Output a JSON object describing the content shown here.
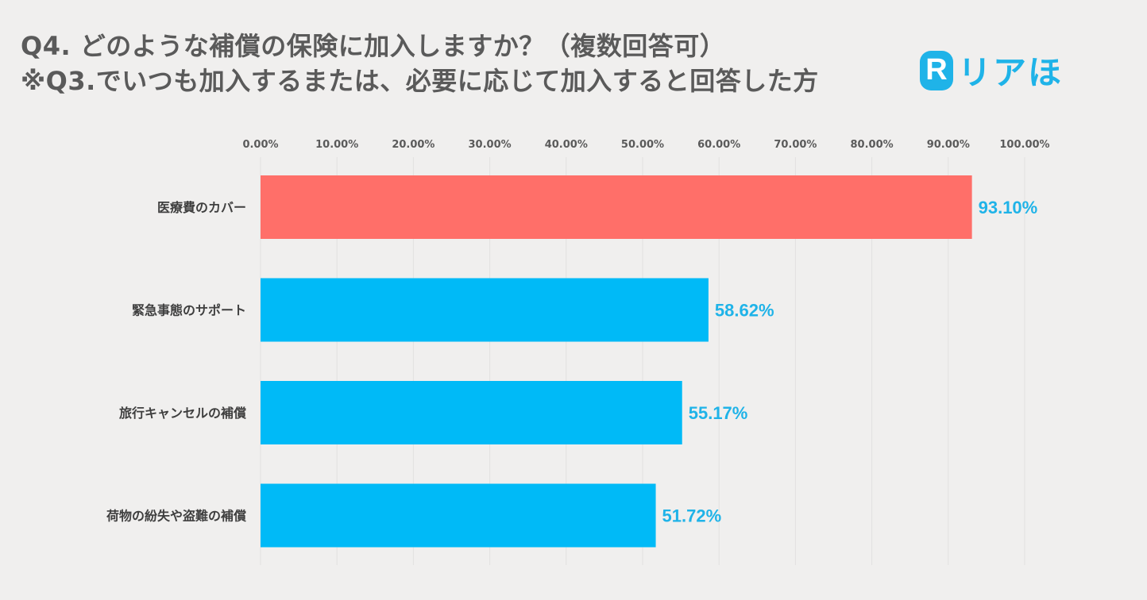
{
  "title": {
    "line1": "Q4. どのような補償の保険に加入しますか？（複数回答可）",
    "line2": "※Q3.でいつも加入するまたは、必要に応じて加入すると回答した方"
  },
  "logo": {
    "mark": "R",
    "text": "リアほ",
    "color": "#1fb3e8"
  },
  "chart_data": {
    "type": "bar",
    "orientation": "horizontal",
    "categories": [
      "医療費のカバー",
      "緊急事態のサポート",
      "旅行キャンセルの補償",
      "荷物の紛失や盗難の補償"
    ],
    "values": [
      93.1,
      58.62,
      55.17,
      51.72
    ],
    "data_labels": [
      "93.10%",
      "58.62%",
      "55.17%",
      "51.72%"
    ],
    "xlim": [
      0,
      100
    ],
    "x_ticks": [
      "0.00%",
      "10.00%",
      "20.00%",
      "30.00%",
      "40.00%",
      "50.00%",
      "60.00%",
      "70.00%",
      "80.00%",
      "90.00%",
      "100.00%"
    ],
    "axis_position": "top",
    "grid": true,
    "legend": "none",
    "colors": {
      "highlight": "#ff6f69",
      "default": "#00baf7",
      "label": "#1fb3e8"
    }
  }
}
